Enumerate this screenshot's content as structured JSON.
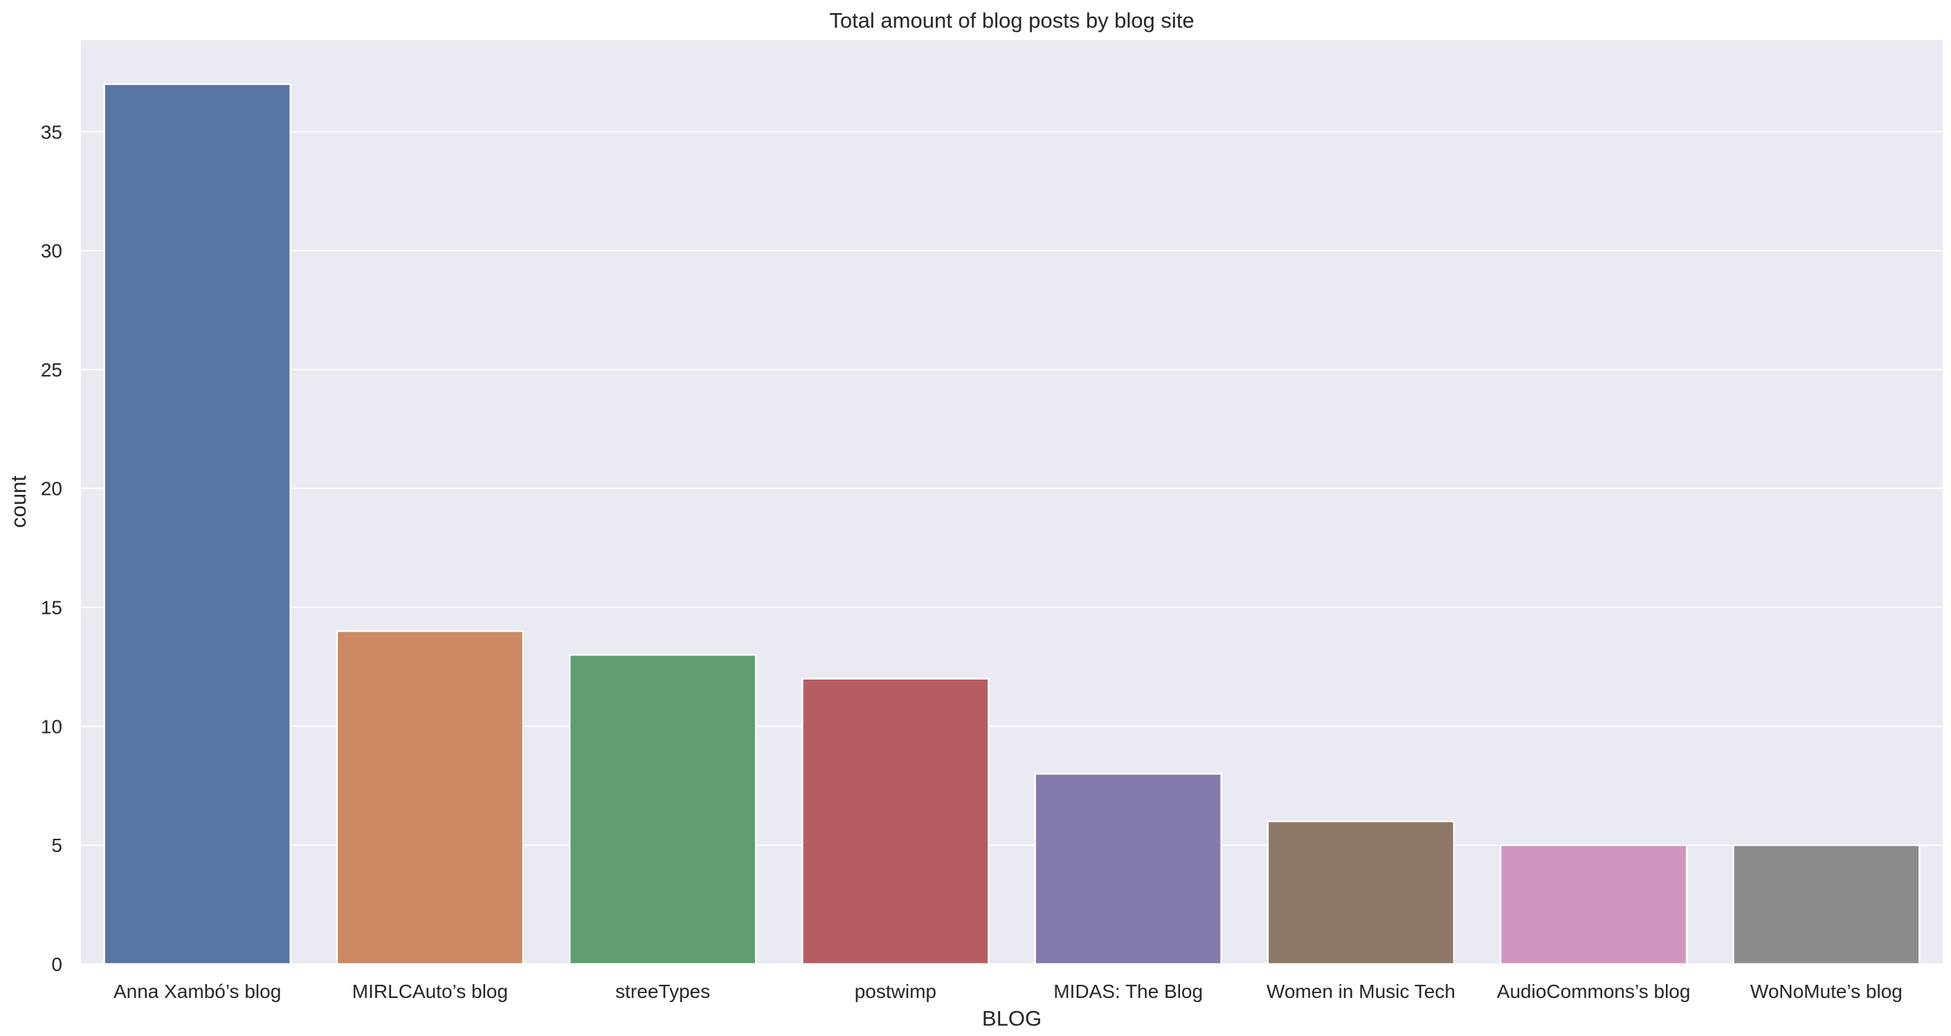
{
  "chart_data": {
    "type": "bar",
    "title": "Total amount of blog posts by blog site",
    "xlabel": "BLOG",
    "ylabel": "count",
    "categories": [
      "Anna Xambó’s blog",
      "MIRLCAuto’s blog",
      "streeTypes",
      "postwimp",
      "MIDAS: The Blog",
      "Women in Music Tech",
      "AudioCommons’s blog",
      "WoNoMute’s blog"
    ],
    "values": [
      37,
      14,
      13,
      12,
      8,
      6,
      5,
      5
    ],
    "colors": [
      "#5975a4",
      "#cc8963",
      "#5f9e6e",
      "#b55d60",
      "#857aab",
      "#8d7866",
      "#d095bf",
      "#8c8c8c"
    ],
    "ylim": [
      0,
      38.85
    ],
    "yticks": [
      0,
      5,
      10,
      15,
      20,
      25,
      30,
      35
    ],
    "grid": true,
    "legend": "none",
    "plot_background": "#eaeaf2",
    "grid_color": "#ffffff"
  }
}
